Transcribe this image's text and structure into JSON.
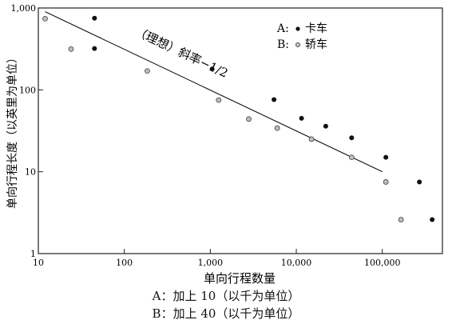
{
  "chart_data": {
    "type": "scatter",
    "x_scale": "log",
    "y_scale": "log",
    "xlim": [
      10,
      500000
    ],
    "ylim": [
      1,
      1000
    ],
    "x_ticks": [
      10,
      100,
      1000,
      10000,
      100000
    ],
    "x_tick_labels": [
      "10",
      "100",
      "1,000",
      "10,000",
      "100,000"
    ],
    "y_ticks": [
      1,
      10,
      100,
      1000
    ],
    "y_tick_labels": [
      "1",
      "10",
      "100",
      "1,000"
    ],
    "xlabel": "单向行程数量",
    "ylabel": "单向行程长度（以英里为单位）",
    "grid": false,
    "legend_position": "top-right",
    "series": [
      {
        "name": "卡车",
        "legend_prefix": "A:",
        "marker": "filled",
        "x": [
          45,
          45,
          1050,
          5500,
          11500,
          22000,
          44000,
          110000,
          270000,
          380000
        ],
        "y": [
          750,
          320,
          180,
          76,
          45,
          36,
          26,
          15,
          7.5,
          2.6
        ]
      },
      {
        "name": "轿车",
        "legend_prefix": "B:",
        "marker": "hollow",
        "x": [
          12,
          24,
          185,
          1250,
          2800,
          6000,
          15000,
          44000,
          110000,
          165000
        ],
        "y": [
          740,
          315,
          170,
          75,
          44,
          34,
          25,
          15,
          7.5,
          2.6
        ]
      }
    ],
    "ideal_line": {
      "label": "（理想）斜率−1/2",
      "x": [
        12,
        100000
      ],
      "y": [
        900,
        10
      ]
    },
    "captions": [
      "A：加上 10（以千为单位）",
      "B：加上 40（以千为单位）"
    ]
  }
}
